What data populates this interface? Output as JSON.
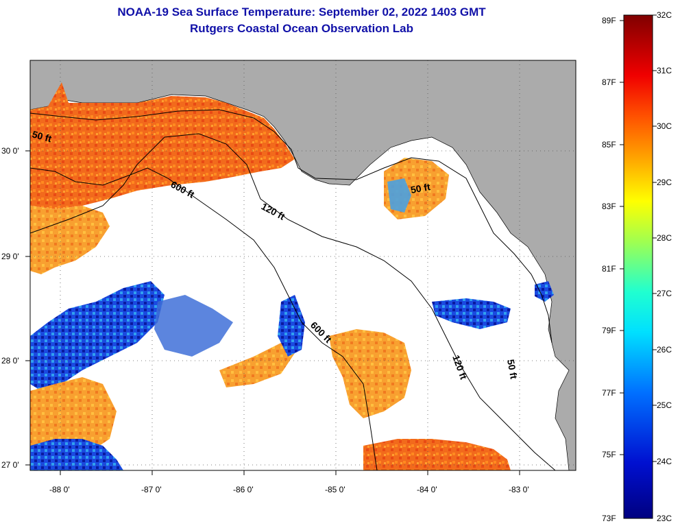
{
  "title": {
    "line1": "NOAA-19 Sea Surface Temperature:  September 02, 2022 1403 GMT",
    "line2": "Rutgers Coastal Ocean Observation Lab"
  },
  "axes": {
    "lon_ticks": [
      "-88 0'",
      "-87 0'",
      "-86 0'",
      "-85 0'",
      "-84 0'",
      "-83 0'"
    ],
    "lat_ticks": [
      "30 0'",
      "29 0'",
      "28 0'",
      "27 0'"
    ]
  },
  "contours": {
    "c50_nw": "50 ft",
    "c600_n": "600 ft",
    "c120_n": "120 ft",
    "c50_ne": "50 ft",
    "c600_s": "600 ft",
    "c120_s": "120 ft",
    "c50_se": "50 ft"
  },
  "colorbar": {
    "fahrenheit": [
      "89F",
      "87F",
      "85F",
      "83F",
      "81F",
      "79F",
      "77F",
      "75F",
      "73F"
    ],
    "celsius": [
      "32C",
      "31C",
      "30C",
      "29C",
      "28C",
      "27C",
      "26C",
      "25C",
      "24C",
      "23C"
    ]
  },
  "colors": {
    "land": "#ababab",
    "title": "#1010a8",
    "warm": "#f05a1a",
    "cool": "#1030c8"
  }
}
